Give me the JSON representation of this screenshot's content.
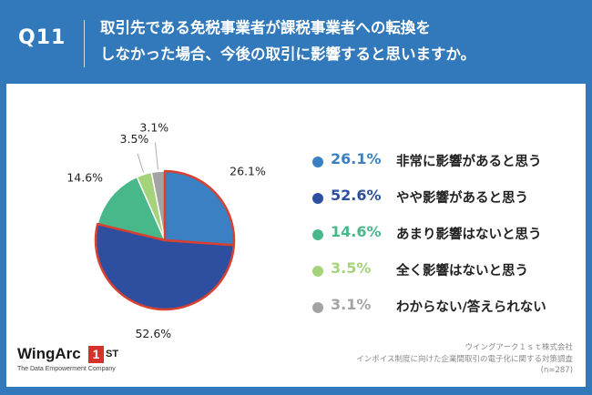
{
  "header": {
    "qnum": "Q11",
    "title_line1": "取引先である免税事業者が課税事業者への転換を",
    "title_line2": "しなかった場合、今後の取引に影響すると思いますか。"
  },
  "chart_data": {
    "type": "pie",
    "title": "",
    "categories": [
      "非常に影響があると思う",
      "やや影響があると思う",
      "あまり影響はないと思う",
      "全く影響はないと思う",
      "わからない/答えられない"
    ],
    "values": [
      26.1,
      52.6,
      14.6,
      3.5,
      3.1
    ],
    "value_labels": [
      "26.1%",
      "52.6%",
      "14.6%",
      "3.5%",
      "3.1%"
    ],
    "colors": [
      "#3a80c2",
      "#2e4fa0",
      "#48b88a",
      "#a4d37c",
      "#a3a3a3"
    ],
    "highlight_color": "#d8412f",
    "highlighted": [
      0,
      1
    ],
    "start": "12 o'clock",
    "direction": "clockwise",
    "legend_position": "right"
  },
  "legend": [
    {
      "pct": "26.1%",
      "label": "非常に影響があると思う",
      "color": "#3a80c2"
    },
    {
      "pct": "52.6%",
      "label": "やや影響があると思う",
      "color": "#2e4fa0"
    },
    {
      "pct": "14.6%",
      "label": "あまり影響はないと思う",
      "color": "#48b88a"
    },
    {
      "pct": "3.5%",
      "label": "全く影響はないと思う",
      "color": "#a4d37c"
    },
    {
      "pct": "3.1%",
      "label": "わからない/答えられない",
      "color": "#a3a3a3"
    }
  ],
  "logo": {
    "main": "WingArc",
    "box": "1",
    "suffix": "ST",
    "tagline": "The Data Empowerment Company"
  },
  "source": {
    "line1": "ウイングアーク１ｓｔ株式会社",
    "line2": "インボイス制度に向けた企業間取引の電子化に関する対策調査",
    "line3": "(n=287)"
  }
}
